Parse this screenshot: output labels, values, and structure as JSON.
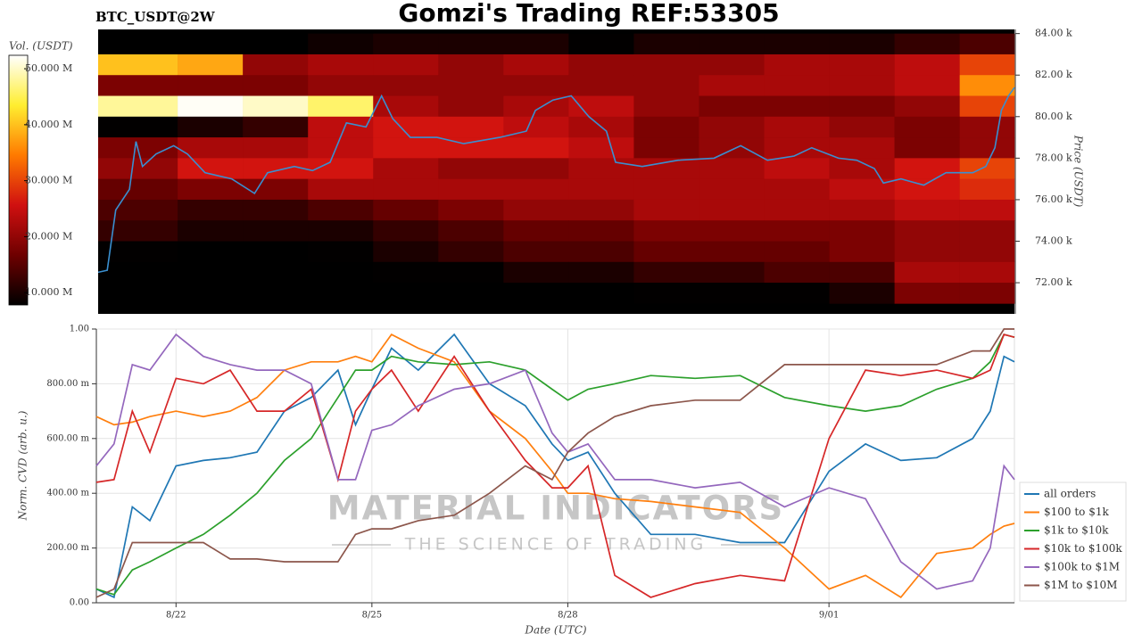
{
  "chart_data": [
    {
      "type": "heatmap",
      "title": "Gomzi's Trading REF:53305",
      "subtitle": "BTC_USDT@2W",
      "ylabel": "Price (USDT)",
      "xlim": [
        20.78,
        34.84
      ],
      "ylim": [
        70500,
        84200
      ],
      "yticks": [
        {
          "value": 72000,
          "label": "72.00 k"
        },
        {
          "value": 74000,
          "label": "74.00 k"
        },
        {
          "value": 76000,
          "label": "76.00 k"
        },
        {
          "value": 78000,
          "label": "78.00 k"
        },
        {
          "value": 80000,
          "label": "80.00 k"
        },
        {
          "value": 82000,
          "label": "82.00 k"
        },
        {
          "value": 84000,
          "label": "84.00 k"
        }
      ],
      "x_bins": [
        20.78,
        22,
        23,
        24,
        25,
        26,
        27,
        28,
        29,
        30,
        31,
        32,
        33,
        34,
        34.84
      ],
      "y_bins": [
        84000,
        83000,
        82000,
        81000,
        80000,
        79000,
        78000,
        77000,
        76000,
        75000,
        74000,
        73000,
        72000,
        71000
      ],
      "z": [
        [
          5000000.0,
          6000000.0,
          7000000.0,
          9000000.0,
          10000000.0,
          10000000.0,
          10000000.0,
          8000000.0,
          10000000.0,
          10000000.0,
          10000000.0,
          10000000.0,
          12000000.0,
          14000000.0
        ],
        [
          40000000.0,
          38000000.0,
          20000000.0,
          22000000.0,
          22000000.0,
          20000000.0,
          22000000.0,
          20000000.0,
          20000000.0,
          20000000.0,
          22000000.0,
          22000000.0,
          24000000.0,
          30000000.0
        ],
        [
          18000000.0,
          18000000.0,
          18000000.0,
          20000000.0,
          20000000.0,
          20000000.0,
          20000000.0,
          20000000.0,
          20000000.0,
          22000000.0,
          22000000.0,
          22000000.0,
          24000000.0,
          36000000.0
        ],
        [
          48000000.0,
          52000000.0,
          50000000.0,
          46000000.0,
          22000000.0,
          20000000.0,
          22000000.0,
          24000000.0,
          20000000.0,
          18000000.0,
          18000000.0,
          18000000.0,
          20000000.0,
          30000000.0
        ],
        [
          8000000.0,
          10000000.0,
          12000000.0,
          24000000.0,
          26000000.0,
          26000000.0,
          24000000.0,
          22000000.0,
          18000000.0,
          20000000.0,
          22000000.0,
          20000000.0,
          18000000.0,
          20000000.0
        ],
        [
          18000000.0,
          22000000.0,
          22000000.0,
          24000000.0,
          26000000.0,
          26000000.0,
          26000000.0,
          24000000.0,
          18000000.0,
          20000000.0,
          22000000.0,
          22000000.0,
          18000000.0,
          20000000.0
        ],
        [
          20000000.0,
          26000000.0,
          26000000.0,
          26000000.0,
          22000000.0,
          20000000.0,
          20000000.0,
          22000000.0,
          22000000.0,
          22000000.0,
          24000000.0,
          22000000.0,
          26000000.0,
          30000000.0
        ],
        [
          16000000.0,
          18000000.0,
          18000000.0,
          22000000.0,
          22000000.0,
          22000000.0,
          22000000.0,
          22000000.0,
          22000000.0,
          22000000.0,
          22000000.0,
          24000000.0,
          26000000.0,
          28000000.0
        ],
        [
          14000000.0,
          12000000.0,
          12000000.0,
          14000000.0,
          16000000.0,
          18000000.0,
          20000000.0,
          20000000.0,
          22000000.0,
          22000000.0,
          22000000.0,
          22000000.0,
          24000000.0,
          24000000.0
        ],
        [
          12000000.0,
          10000000.0,
          10000000.0,
          10000000.0,
          12000000.0,
          14000000.0,
          16000000.0,
          16000000.0,
          18000000.0,
          18000000.0,
          18000000.0,
          18000000.0,
          20000000.0,
          20000000.0
        ],
        [
          8000000.0,
          6000000.0,
          6000000.0,
          8000000.0,
          10000000.0,
          12000000.0,
          14000000.0,
          14000000.0,
          16000000.0,
          16000000.0,
          16000000.0,
          18000000.0,
          20000000.0,
          20000000.0
        ],
        [
          6000000.0,
          5000000.0,
          5000000.0,
          6000000.0,
          8000000.0,
          8000000.0,
          10000000.0,
          10000000.0,
          12000000.0,
          12000000.0,
          14000000.0,
          14000000.0,
          22000000.0,
          22000000.0
        ],
        [
          5000000.0,
          5000000.0,
          5000000.0,
          5000000.0,
          6000000.0,
          6000000.0,
          6000000.0,
          6000000.0,
          8000000.0,
          8000000.0,
          8000000.0,
          10000000.0,
          18000000.0,
          18000000.0
        ]
      ],
      "colorscale": [
        "#000000",
        "#6e0000",
        "#d01010",
        "#ff7a00",
        "#ffee30",
        "#ffffff"
      ],
      "colorbar": {
        "label": "Vol. (USDT)",
        "lim": [
          7800000,
          52400000
        ],
        "ticks": [
          {
            "value": 10000000,
            "label": "10.000 M"
          },
          {
            "value": 20000000,
            "label": "20.000 M"
          },
          {
            "value": 30000000,
            "label": "30.000 M"
          },
          {
            "value": 40000000,
            "label": "40.000 M"
          },
          {
            "value": 50000000,
            "label": "50.000 M"
          }
        ]
      },
      "line": {
        "color": "#3a8fd0",
        "x": [
          20.78,
          20.92,
          21.05,
          21.26,
          21.36,
          21.46,
          21.67,
          21.94,
          22.15,
          22.42,
          22.83,
          23.18,
          23.38,
          23.79,
          24.07,
          24.34,
          24.59,
          24.89,
          25.13,
          25.3,
          25.57,
          25.98,
          26.39,
          26.94,
          27.35,
          27.49,
          27.76,
          28.04,
          28.31,
          28.58,
          28.72,
          29.13,
          29.68,
          30.23,
          30.64,
          31.05,
          31.46,
          31.73,
          32.14,
          32.42,
          32.69,
          32.83,
          33.1,
          33.45,
          33.79,
          34.2,
          34.4,
          34.54,
          34.64,
          34.75,
          34.84
        ],
        "values": [
          72500,
          72600,
          75500,
          76500,
          78800,
          77600,
          78200,
          78600,
          78200,
          77300,
          77000,
          76300,
          77300,
          77600,
          77400,
          77800,
          79700,
          79500,
          81000,
          79900,
          79000,
          79000,
          78700,
          79000,
          79300,
          80300,
          80800,
          81000,
          80000,
          79300,
          77800,
          77600,
          77900,
          78000,
          78600,
          77900,
          78100,
          78500,
          78000,
          77900,
          77500,
          76800,
          77000,
          76700,
          77300,
          77300,
          77600,
          78500,
          80300,
          81000,
          81400
        ]
      }
    },
    {
      "type": "line",
      "xlabel": "Date (UTC)",
      "ylabel": "Norm. CVD (arb. u.)",
      "xlim": [
        20.78,
        34.84
      ],
      "ylim": [
        0,
        1
      ],
      "xticks": [
        {
          "value": 22,
          "label": "8/22"
        },
        {
          "value": 25,
          "label": "8/25"
        },
        {
          "value": 28,
          "label": "8/28"
        },
        {
          "value": 32,
          "label": "9/01"
        }
      ],
      "yticks": [
        {
          "value": 0,
          "label": "0.00"
        },
        {
          "value": 0.2,
          "label": "200.00 m"
        },
        {
          "value": 0.4,
          "label": "400.00 m"
        },
        {
          "value": 0.6,
          "label": "600.00 m"
        },
        {
          "value": 0.8,
          "label": "800.00 m"
        },
        {
          "value": 1,
          "label": "1.00"
        }
      ],
      "grid": true,
      "legend": "lower right",
      "x": [
        20.78,
        21.05,
        21.33,
        21.6,
        22,
        22.42,
        22.83,
        23.24,
        23.66,
        24.07,
        24.48,
        24.75,
        25,
        25.3,
        25.71,
        26.26,
        26.8,
        27.35,
        27.76,
        28,
        28.31,
        28.72,
        29.27,
        29.95,
        30.64,
        31.32,
        32,
        32.56,
        33.1,
        33.65,
        34.2,
        34.47,
        34.68,
        34.84
      ],
      "series": [
        {
          "name": "all orders",
          "color": "#1f77b4",
          "values": [
            0.05,
            0.02,
            0.35,
            0.3,
            0.5,
            0.52,
            0.53,
            0.55,
            0.7,
            0.75,
            0.85,
            0.65,
            0.78,
            0.93,
            0.85,
            0.98,
            0.8,
            0.72,
            0.58,
            0.52,
            0.55,
            0.4,
            0.25,
            0.25,
            0.22,
            0.22,
            0.48,
            0.58,
            0.52,
            0.53,
            0.6,
            0.7,
            0.9,
            0.88
          ]
        },
        {
          "name": "$100 to $1k",
          "color": "#ff7f0e",
          "values": [
            0.68,
            0.65,
            0.66,
            0.68,
            0.7,
            0.68,
            0.7,
            0.75,
            0.85,
            0.88,
            0.88,
            0.9,
            0.88,
            0.98,
            0.93,
            0.88,
            0.7,
            0.6,
            0.48,
            0.4,
            0.4,
            0.38,
            0.37,
            0.35,
            0.33,
            0.2,
            0.05,
            0.1,
            0.02,
            0.18,
            0.2,
            0.25,
            0.28,
            0.29
          ]
        },
        {
          "name": "$1k to $10k",
          "color": "#2ca02c",
          "values": [
            0.05,
            0.03,
            0.12,
            0.15,
            0.2,
            0.25,
            0.32,
            0.4,
            0.52,
            0.6,
            0.75,
            0.85,
            0.85,
            0.9,
            0.88,
            0.87,
            0.88,
            0.85,
            0.78,
            0.74,
            0.78,
            0.8,
            0.83,
            0.82,
            0.83,
            0.75,
            0.72,
            0.7,
            0.72,
            0.78,
            0.82,
            0.88,
            0.98,
            0.97
          ]
        },
        {
          "name": "$10k to $100k",
          "color": "#d62728",
          "values": [
            0.44,
            0.45,
            0.7,
            0.55,
            0.82,
            0.8,
            0.85,
            0.7,
            0.7,
            0.78,
            0.45,
            0.7,
            0.78,
            0.85,
            0.7,
            0.9,
            0.7,
            0.52,
            0.42,
            0.42,
            0.5,
            0.1,
            0.02,
            0.07,
            0.1,
            0.08,
            0.6,
            0.85,
            0.83,
            0.85,
            0.82,
            0.85,
            0.98,
            0.97
          ]
        },
        {
          "name": "$100k to $1M",
          "color": "#9467bd",
          "values": [
            0.5,
            0.58,
            0.87,
            0.85,
            0.98,
            0.9,
            0.87,
            0.85,
            0.85,
            0.8,
            0.45,
            0.45,
            0.63,
            0.65,
            0.72,
            0.78,
            0.8,
            0.85,
            0.62,
            0.55,
            0.58,
            0.45,
            0.45,
            0.42,
            0.44,
            0.35,
            0.42,
            0.38,
            0.15,
            0.05,
            0.08,
            0.2,
            0.5,
            0.45
          ]
        },
        {
          "name": "$1M to $10M",
          "color": "#8c564b",
          "values": [
            0.02,
            0.05,
            0.22,
            0.22,
            0.22,
            0.22,
            0.16,
            0.16,
            0.15,
            0.15,
            0.15,
            0.25,
            0.27,
            0.27,
            0.3,
            0.32,
            0.4,
            0.5,
            0.45,
            0.55,
            0.62,
            0.68,
            0.72,
            0.74,
            0.74,
            0.87,
            0.87,
            0.87,
            0.87,
            0.87,
            0.92,
            0.92,
            1,
            1
          ]
        }
      ]
    }
  ],
  "watermark": {
    "name": "MATERIAL INDICATORS",
    "slogan": "THE SCIENCE OF TRADING"
  }
}
